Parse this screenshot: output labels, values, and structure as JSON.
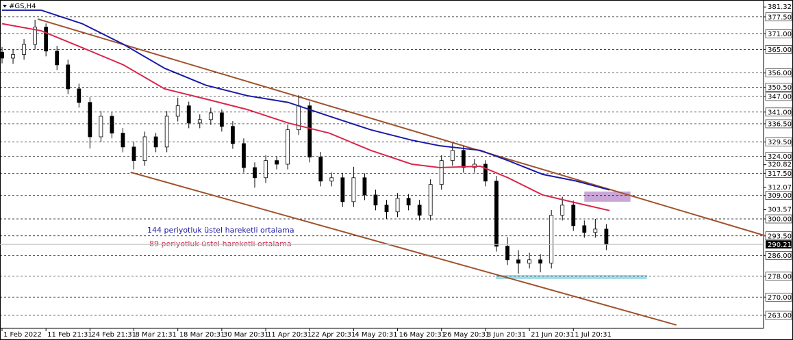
{
  "chart_data": {
    "type": "candlestick",
    "title": "#GS,H4",
    "x": [
      0,
      2,
      4,
      6,
      8,
      10,
      12,
      14,
      16,
      18,
      20,
      22,
      24,
      26,
      28,
      30,
      32,
      34,
      36,
      38,
      40,
      42,
      44,
      46,
      48,
      50,
      52,
      54,
      56,
      58,
      60,
      62,
      64,
      66,
      68,
      70,
      72,
      74,
      76,
      78,
      80,
      82,
      84,
      86,
      88,
      90,
      92,
      94,
      96,
      98,
      100,
      102,
      104,
      106,
      108,
      110
    ],
    "open": [
      364.0,
      361.7,
      363.1,
      367.0,
      373.6,
      364.4,
      359.1,
      349.9,
      344.7,
      331.5,
      339.4,
      332.9,
      327.6,
      322.4,
      331.5,
      327.6,
      339.4,
      343.4,
      336.8,
      338.1,
      340.7,
      335.5,
      328.9,
      319.7,
      315.8,
      322.4,
      321.0,
      334.2,
      343.4,
      323.7,
      314.5,
      315.8,
      306.6,
      315.8,
      309.2,
      305.3,
      302.7,
      307.9,
      305.3,
      301.4,
      313.2,
      322.4,
      326.3,
      319.7,
      321.0,
      314.5,
      289.5,
      284.3,
      283.0,
      284.3,
      283.0,
      301.4,
      305.3,
      297.4,
      294.8,
      296.1
    ],
    "high": [
      366.0,
      365.1,
      369.0,
      376.4,
      375.0,
      366.4,
      361.1,
      351.9,
      346.7,
      341.4,
      341.0,
      334.9,
      329.6,
      333.5,
      333.0,
      341.4,
      346.5,
      345.0,
      340.1,
      342.7,
      342.0,
      337.5,
      330.9,
      321.7,
      324.4,
      324.0,
      336.2,
      347.5,
      345.0,
      325.7,
      317.8,
      317.5,
      320.0,
      317.5,
      311.2,
      307.3,
      309.9,
      309.5,
      307.3,
      315.2,
      324.4,
      329.0,
      328.0,
      323.0,
      322.5,
      316.5,
      293.0,
      288.0,
      287.0,
      286.5,
      303.4,
      308.5,
      307.0,
      299.4,
      300.0,
      298.0
    ],
    "low": [
      359.7,
      359.5,
      361.1,
      365.0,
      362.4,
      357.1,
      347.9,
      342.7,
      327.0,
      329.5,
      330.9,
      325.6,
      319.0,
      320.4,
      325.6,
      325.6,
      337.4,
      334.8,
      334.8,
      336.1,
      333.5,
      326.9,
      317.7,
      312.0,
      313.8,
      319.0,
      319.0,
      332.2,
      321.7,
      312.5,
      312.5,
      304.6,
      304.6,
      307.2,
      303.3,
      300.0,
      300.7,
      303.3,
      299.4,
      299.4,
      311.2,
      320.4,
      317.7,
      317.7,
      312.5,
      287.5,
      282.3,
      279.0,
      281.0,
      279.5,
      281.0,
      299.4,
      295.4,
      292.8,
      292.8,
      288.0
    ],
    "close": [
      361.7,
      363.1,
      367.0,
      373.6,
      364.4,
      359.1,
      349.9,
      344.7,
      331.5,
      339.4,
      332.9,
      327.6,
      322.4,
      331.5,
      327.6,
      339.4,
      343.4,
      336.8,
      338.1,
      340.7,
      335.5,
      328.9,
      319.7,
      315.8,
      322.4,
      321.0,
      334.2,
      343.4,
      323.7,
      314.5,
      315.8,
      306.6,
      315.8,
      309.2,
      305.3,
      302.7,
      307.9,
      305.3,
      301.4,
      313.2,
      322.4,
      326.3,
      319.7,
      321.0,
      314.5,
      289.5,
      284.3,
      283.0,
      284.3,
      283.0,
      301.4,
      305.3,
      297.4,
      294.8,
      296.1,
      290.2
    ],
    "xlim": [
      0,
      139
    ],
    "ylim": [
      258,
      384
    ],
    "xticks": [
      {
        "value": 0,
        "label": "1 Feb 2022"
      },
      {
        "value": 8,
        "label": "11 Feb 21:31"
      },
      {
        "value": 16,
        "label": "24 Feb 21:31"
      },
      {
        "value": 24,
        "label": "8 Mar 21:31"
      },
      {
        "value": 32,
        "label": "18 Mar 20:31"
      },
      {
        "value": 40,
        "label": "30 Mar 20:31"
      },
      {
        "value": 48,
        "label": "11 Apr 20:31"
      },
      {
        "value": 56,
        "label": "22 Apr 20:31"
      },
      {
        "value": 64,
        "label": "4 May 20:31"
      },
      {
        "value": 72,
        "label": "16 May 20:31"
      },
      {
        "value": 80,
        "label": "26 May 20:31"
      },
      {
        "value": 88,
        "label": "8 Jun 20:31"
      },
      {
        "value": 96,
        "label": "21 Jun 20:31"
      },
      {
        "value": 104,
        "label": "1 Jul 20:31"
      }
    ],
    "yticks": [
      381.32,
      320.82,
      312.07,
      303.57
    ],
    "levels": [
      {
        "value": 377.5,
        "label": "377.50"
      },
      {
        "value": 371,
        "label": "371.00"
      },
      {
        "value": 365,
        "label": "365.00"
      },
      {
        "value": 356,
        "label": "356.00"
      },
      {
        "value": 350.5,
        "label": "350.50"
      },
      {
        "value": 347,
        "label": "347.00"
      },
      {
        "value": 341,
        "label": "341.00"
      },
      {
        "value": 336.5,
        "label": "336.50"
      },
      {
        "value": 329.5,
        "label": "329.50"
      },
      {
        "value": 324,
        "label": "324.00"
      },
      {
        "value": 317.5,
        "label": "317.50"
      },
      {
        "value": 309,
        "label": "309.00"
      },
      {
        "value": 300,
        "label": "300.00"
      },
      {
        "value": 293.5,
        "label": "293.50"
      },
      {
        "value": 286,
        "label": "286.00"
      },
      {
        "value": 278,
        "label": "278.00"
      },
      {
        "value": 270,
        "label": "270.00"
      },
      {
        "value": 263,
        "label": "263.00"
      }
    ],
    "last_price": 290.21,
    "moving_averages": {
      "x": [
        0,
        7.1,
        14.6,
        22.1,
        29.6,
        37.1,
        44.6,
        52.1,
        59.6,
        67.1,
        74.6,
        79.6,
        87.1,
        92.1,
        98.4,
        104.6,
        110.6
      ],
      "series": [
        {
          "name": "144 periyotluk üstel hareketli ortalama",
          "color": "#1a1aa6",
          "values": [
            380.1,
            380.1,
            374.9,
            367.0,
            357.8,
            351.3,
            347.3,
            344.7,
            339.4,
            334.2,
            330.2,
            328.1,
            326.3,
            322.4,
            317.1,
            314.5,
            311.1
          ]
        },
        {
          "name": "89 periyotluk üstel hareketli ortalama",
          "color": "#d9264a",
          "values": [
            374.9,
            372.2,
            365.7,
            359.1,
            349.9,
            346.0,
            342.0,
            336.8,
            332.9,
            326.3,
            321.0,
            319.7,
            320.2,
            315.8,
            309.2,
            306.1,
            303.2
          ]
        }
      ]
    },
    "trendline_color": "#a0522d",
    "trendlines": [
      {
        "x": [
          6.5,
          139
        ],
        "values": [
          376.7,
          293.5
        ]
      },
      {
        "x": [
          23.4,
          122.75
        ],
        "values": [
          317.9,
          259.3
        ]
      }
    ],
    "zones": [
      {
        "x": [
          106,
          114.4
        ],
        "values": [
          310.5,
          306.6
        ],
        "color": "#c9a6d6"
      },
      {
        "x": [
          89.9,
          117.4
        ],
        "values": [
          278.5,
          276.9
        ],
        "color": "#a6dcea"
      }
    ]
  }
}
